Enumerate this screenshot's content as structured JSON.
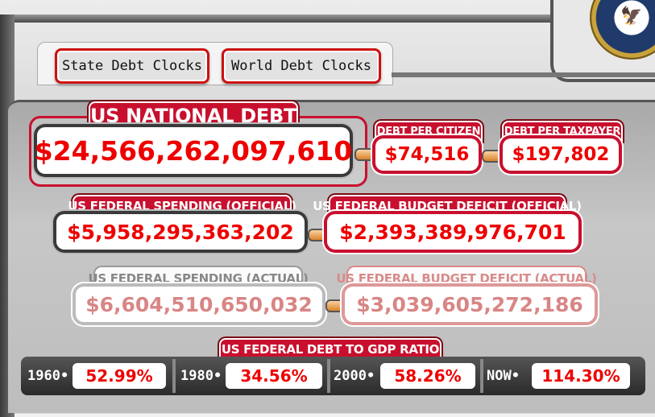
{
  "nav": {
    "state_debt_clocks": "State Debt Clocks",
    "world_debt_clocks": "World Debt Clocks"
  },
  "national_debt": {
    "label": "US NATIONAL DEBT",
    "value": "$24,566,262,097,610"
  },
  "debt_per_citizen": {
    "label": "DEBT PER CITIZEN",
    "value": "$74,516"
  },
  "debt_per_taxpayer": {
    "label": "DEBT PER TAXPAYER",
    "value": "$197,802"
  },
  "federal_spending_official": {
    "label": "US FEDERAL SPENDING (OFFICIAL)",
    "value": "$5,958,295,363,202"
  },
  "budget_deficit_official": {
    "label": "US FEDERAL BUDGET DEFICIT (OFFICIAL)",
    "value": "$2,393,389,976,701"
  },
  "federal_spending_actual": {
    "label": "US FEDERAL SPENDING (ACTUAL)",
    "value": "$6,604,510,650,032"
  },
  "budget_deficit_actual": {
    "label": "US FEDERAL BUDGET DEFICIT (ACTUAL)",
    "value": "$3,039,605,272,186"
  },
  "gdp_ratio": {
    "label": "US FEDERAL DEBT TO GDP RATIO",
    "entries": [
      {
        "year": "1960•",
        "value": "52.99%"
      },
      {
        "year": "1980•",
        "value": "34.56%"
      },
      {
        "year": "2000•",
        "value": "58.26%"
      },
      {
        "year": "NOW•",
        "value": "114.30%"
      }
    ]
  },
  "colors": {
    "accent_red": "#c8102e",
    "value_red": "#ee0000"
  }
}
